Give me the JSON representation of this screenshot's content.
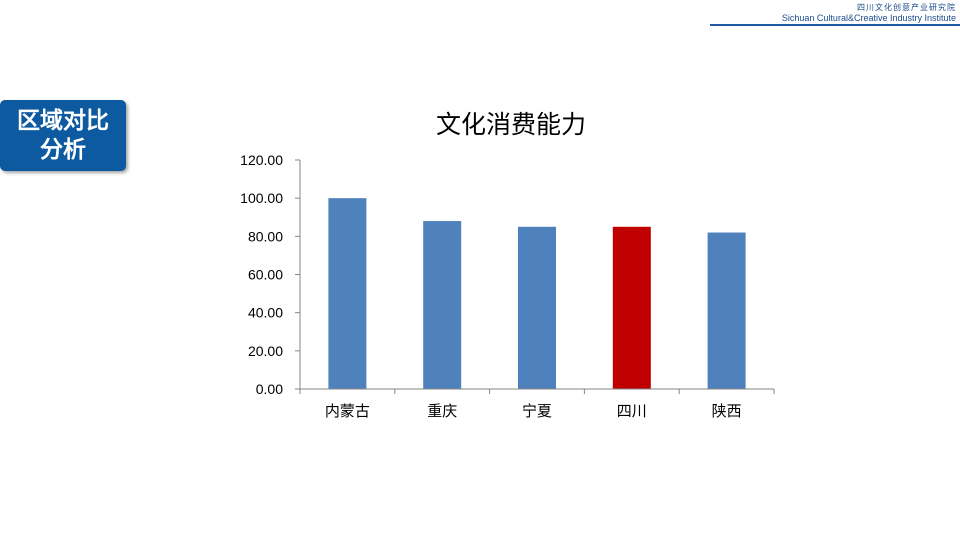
{
  "header": {
    "org_name_cn": "四川文化创意产业研究院",
    "org_name_en": "Sichuan Cultural&Creative Industry Institute"
  },
  "badge": {
    "line1": "区域对比",
    "line2": "分析"
  },
  "colors": {
    "accent": "#0d5aa0",
    "bar_default": "#4f81bd",
    "bar_highlight": "#c00000"
  },
  "chart_data": {
    "type": "bar",
    "title": "文化消费能力",
    "categories": [
      "内蒙古",
      "重庆",
      "宁夏",
      "四川",
      "陕西"
    ],
    "values": [
      100.0,
      88.0,
      85.0,
      85.0,
      82.0
    ],
    "highlight_category": "四川",
    "ylim": [
      0,
      120
    ],
    "yticks": [
      "0.00",
      "20.00",
      "40.00",
      "60.00",
      "80.00",
      "100.00",
      "120.00"
    ],
    "xlabel": "",
    "ylabel": "",
    "grid": false,
    "legend": "none"
  }
}
